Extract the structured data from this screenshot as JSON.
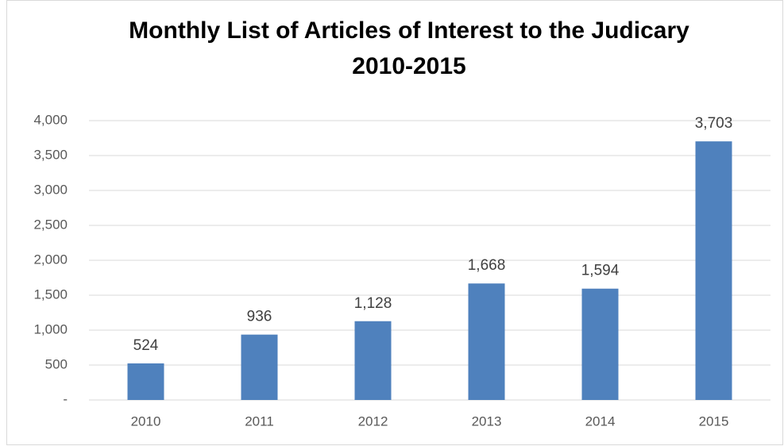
{
  "chart_data": {
    "type": "bar",
    "title": "Monthly List of Articles of Interest to the Judicary",
    "subtitle": "2010-2015",
    "categories": [
      "2010",
      "2011",
      "2012",
      "2013",
      "2014",
      "2015"
    ],
    "values": [
      524,
      936,
      1128,
      1668,
      1594,
      3703
    ],
    "value_labels": [
      "524",
      "936",
      "1,128",
      "1,668",
      "1,594",
      "3,703"
    ],
    "color": "#4f81bd",
    "ylim": [
      0,
      4000
    ],
    "yticks": [
      {
        "value": 0,
        "label": "-"
      },
      500,
      {
        "value": 1000,
        "label": "1,000"
      },
      {
        "value": 1500,
        "label": "1,500"
      },
      {
        "value": 2000,
        "label": "2,000"
      },
      {
        "value": 2500,
        "label": "2,500"
      },
      {
        "value": 3000,
        "label": "3,000"
      },
      {
        "value": 3500,
        "label": "3,500"
      },
      {
        "value": 4000,
        "label": "4,000"
      }
    ],
    "grid": true
  }
}
